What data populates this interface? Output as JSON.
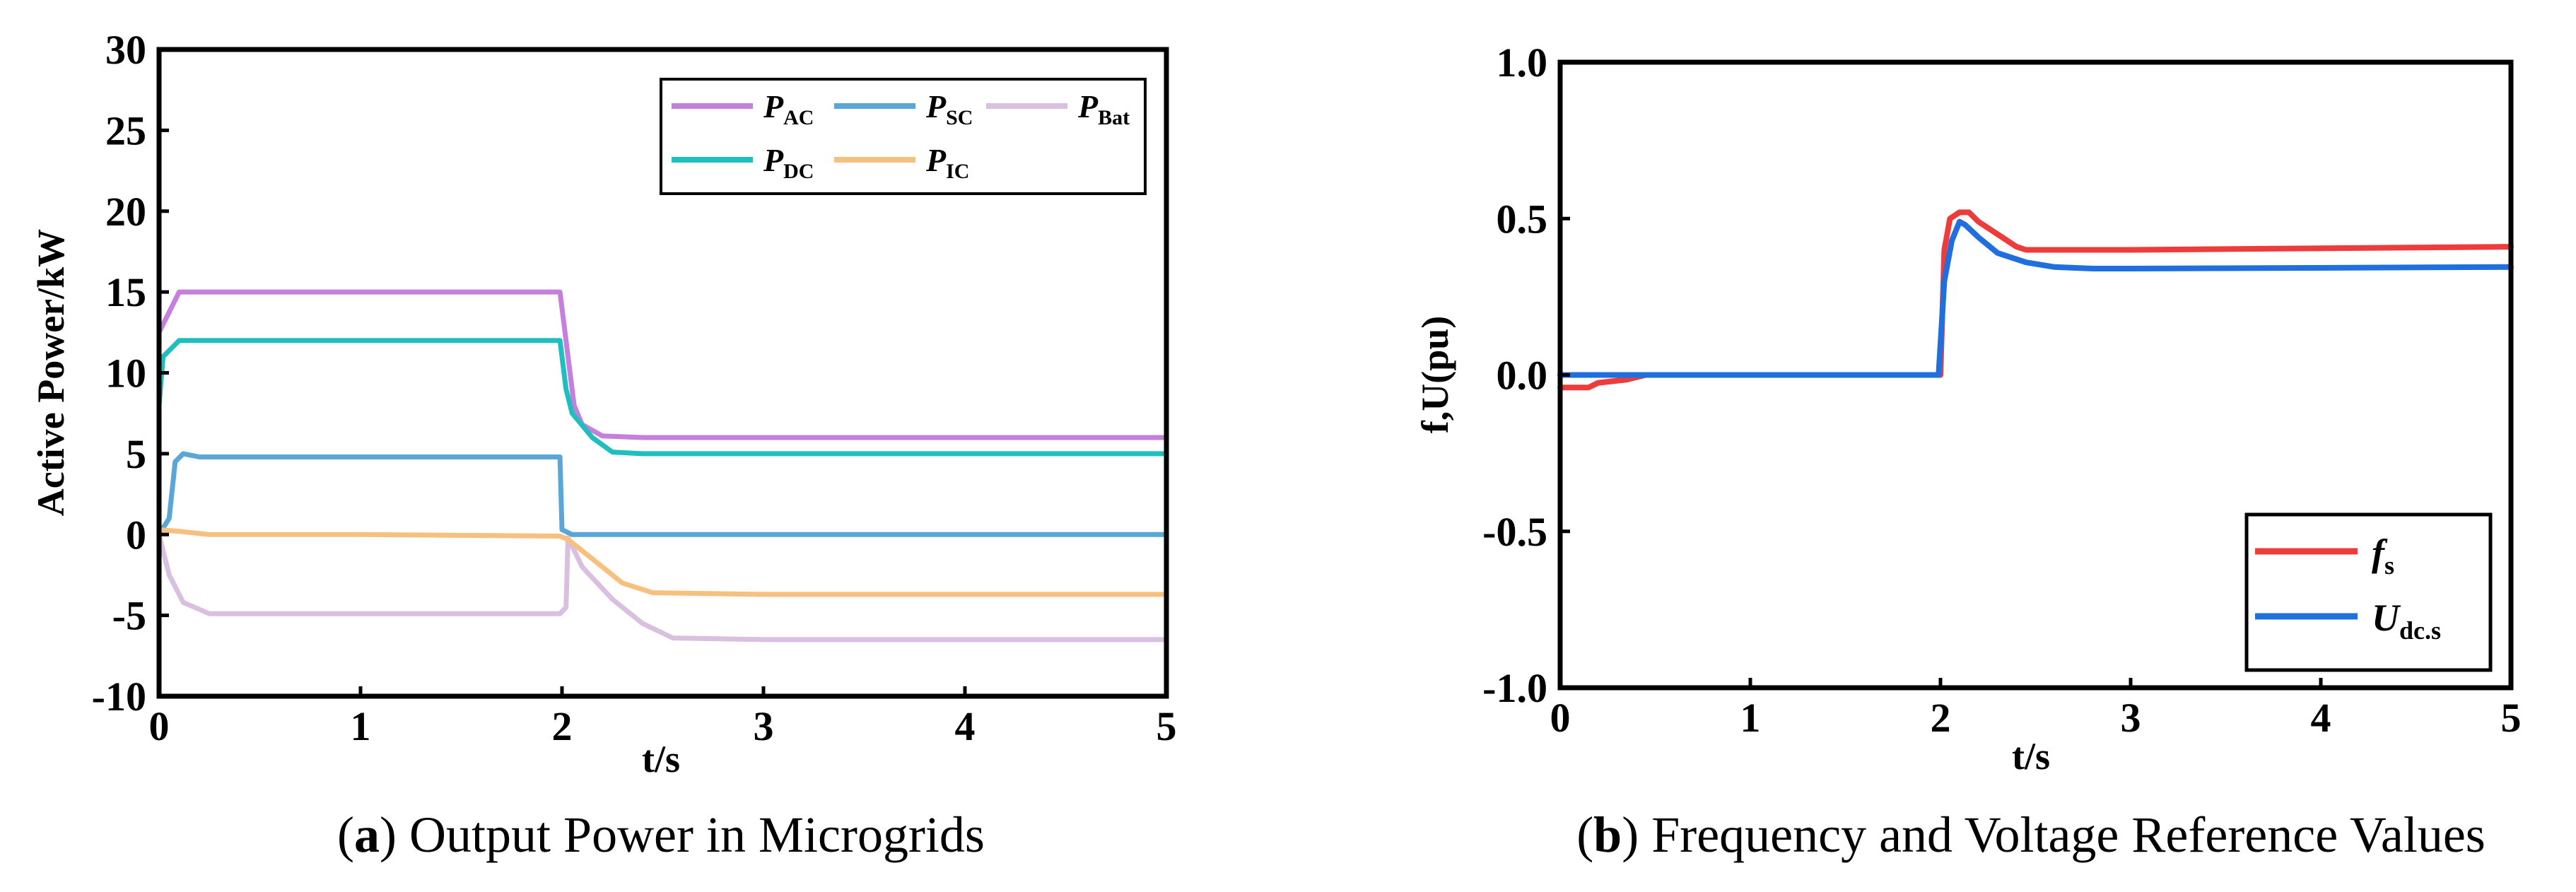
{
  "chart_data": [
    {
      "id": "a",
      "type": "line",
      "caption_label": "a",
      "caption_text": "Output Power in Microgrids",
      "xlabel": "t/s",
      "ylabel": "Active Power/kW",
      "xlim": [
        0,
        5
      ],
      "ylim": [
        -10,
        30
      ],
      "xticks": [
        0,
        1,
        2,
        3,
        4,
        5
      ],
      "yticks": [
        -10,
        -5,
        0,
        5,
        10,
        15,
        20,
        25,
        30
      ],
      "legend_position": "top-right",
      "series": [
        {
          "name": "P",
          "sub": "AC",
          "color": "#c57fdc",
          "points": [
            [
              0,
              12.5
            ],
            [
              0.1,
              15
            ],
            [
              1,
              15
            ],
            [
              1.99,
              15
            ],
            [
              2.02,
              12
            ],
            [
              2.06,
              8
            ],
            [
              2.1,
              6.8
            ],
            [
              2.2,
              6.1
            ],
            [
              2.4,
              6
            ],
            [
              3,
              6
            ],
            [
              5,
              6
            ]
          ]
        },
        {
          "name": "P",
          "sub": "SC",
          "color": "#5aa6d6",
          "points": [
            [
              0,
              0
            ],
            [
              0.05,
              1
            ],
            [
              0.08,
              4.5
            ],
            [
              0.12,
              5
            ],
            [
              0.2,
              4.8
            ],
            [
              1,
              4.8
            ],
            [
              1.99,
              4.8
            ],
            [
              2.0,
              0.3
            ],
            [
              2.05,
              0
            ],
            [
              3,
              0
            ],
            [
              5,
              0
            ]
          ]
        },
        {
          "name": "P",
          "sub": "Bat",
          "color": "#d9bfe0",
          "points": [
            [
              0,
              0
            ],
            [
              0.05,
              -2.5
            ],
            [
              0.12,
              -4.2
            ],
            [
              0.25,
              -4.9
            ],
            [
              1,
              -4.9
            ],
            [
              1.99,
              -4.9
            ],
            [
              2.02,
              -4.5
            ],
            [
              2.03,
              -0.2
            ],
            [
              2.1,
              -2
            ],
            [
              2.25,
              -4
            ],
            [
              2.4,
              -5.5
            ],
            [
              2.55,
              -6.4
            ],
            [
              3,
              -6.5
            ],
            [
              5,
              -6.5
            ]
          ]
        },
        {
          "name": "P",
          "sub": "DC",
          "color": "#1fbfbf",
          "points": [
            [
              0,
              8
            ],
            [
              0.02,
              11
            ],
            [
              0.06,
              11.5
            ],
            [
              0.1,
              12
            ],
            [
              1,
              12
            ],
            [
              1.99,
              12
            ],
            [
              2.02,
              9
            ],
            [
              2.05,
              7.5
            ],
            [
              2.15,
              6
            ],
            [
              2.25,
              5.1
            ],
            [
              2.4,
              5
            ],
            [
              3,
              5
            ],
            [
              5,
              5
            ]
          ]
        },
        {
          "name": "P",
          "sub": "IC",
          "color": "#f7c07e",
          "points": [
            [
              0,
              0.3
            ],
            [
              0.1,
              0.2
            ],
            [
              0.25,
              0
            ],
            [
              1,
              0
            ],
            [
              1.99,
              -0.1
            ],
            [
              2.03,
              -0.3
            ],
            [
              2.15,
              -1.5
            ],
            [
              2.3,
              -3
            ],
            [
              2.45,
              -3.6
            ],
            [
              3,
              -3.7
            ],
            [
              5,
              -3.7
            ]
          ]
        }
      ]
    },
    {
      "id": "b",
      "type": "line",
      "caption_label": "b",
      "caption_text": "Frequency and Voltage Reference Values",
      "xlabel": "t/s",
      "ylabel": "f,U(pu)",
      "xlim": [
        0,
        5
      ],
      "ylim": [
        -1.0,
        1.0
      ],
      "xticks": [
        0,
        1,
        2,
        3,
        4,
        5
      ],
      "yticks": [
        "1.0",
        "0.5",
        "0.0",
        "-0.5",
        "-1.0"
      ],
      "legend_position": "bottom-right",
      "series": [
        {
          "name": "f",
          "sub": "s",
          "color": "#ee3c3c",
          "points": [
            [
              0,
              -0.04
            ],
            [
              0.15,
              -0.04
            ],
            [
              0.2,
              -0.025
            ],
            [
              0.35,
              -0.015
            ],
            [
              0.45,
              0
            ],
            [
              1,
              0
            ],
            [
              2.0,
              0
            ],
            [
              2.02,
              0.4
            ],
            [
              2.05,
              0.5
            ],
            [
              2.1,
              0.52
            ],
            [
              2.15,
              0.52
            ],
            [
              2.2,
              0.49
            ],
            [
              2.3,
              0.45
            ],
            [
              2.4,
              0.41
            ],
            [
              2.45,
              0.4
            ],
            [
              3,
              0.4
            ],
            [
              5,
              0.41
            ]
          ]
        },
        {
          "name": "U",
          "sub": "dc.s",
          "color": "#1f6fde",
          "points": [
            [
              0,
              0
            ],
            [
              1,
              0
            ],
            [
              1.99,
              0
            ],
            [
              2.02,
              0.3
            ],
            [
              2.06,
              0.43
            ],
            [
              2.1,
              0.49
            ],
            [
              2.13,
              0.48
            ],
            [
              2.2,
              0.44
            ],
            [
              2.3,
              0.39
            ],
            [
              2.45,
              0.36
            ],
            [
              2.6,
              0.345
            ],
            [
              2.8,
              0.34
            ],
            [
              3,
              0.34
            ],
            [
              5,
              0.345
            ]
          ]
        }
      ]
    }
  ]
}
